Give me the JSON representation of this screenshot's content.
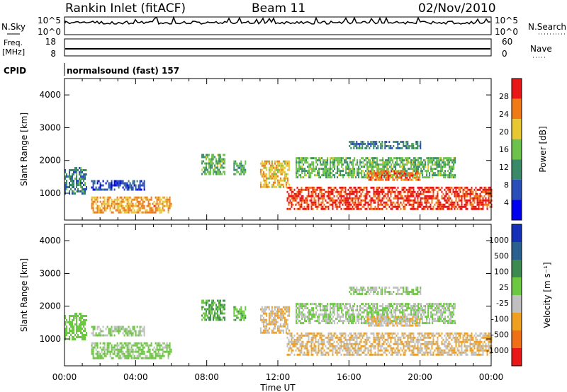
{
  "header": {
    "station": "Rankin Inlet (fitACF)",
    "beam": "Beam 11",
    "date": "02/Nov/2010"
  },
  "status_panels": {
    "nsky_label": "N.Sky",
    "nsky_ticks": [
      "10^5",
      "10^0"
    ],
    "nsearch_label": "N.Search",
    "nsearch_ticks": [
      "10^5",
      "10^0"
    ],
    "freq_label_line1": "Freq.",
    "freq_label_line2": "[MHz]",
    "freq_ticks": [
      "18",
      "8"
    ],
    "nave_label": "Nave",
    "nave_ticks": [
      "60",
      "0"
    ],
    "cpid_label": "CPID",
    "cpid_value": "normalsound (fast) 157"
  },
  "chart_data": [
    {
      "type": "heatmap",
      "title": "",
      "ylabel": "Slant Range [km]",
      "xlabel": "",
      "ylim": [
        180,
        4500
      ],
      "y_ticks": [
        "1000",
        "2000",
        "3000",
        "4000"
      ],
      "colorbar_label": "Power [dB]",
      "colorbar_ticks": [
        "28",
        "24",
        "20",
        "16",
        "12",
        "8",
        "4"
      ],
      "colorbar_colors": [
        "#0000ee",
        "#2a4fb8",
        "#3a8a6a",
        "#6cc24a",
        "#e8c832",
        "#f07a18",
        "#e81818"
      ],
      "colorbar_range": [
        0,
        30
      ],
      "regions": [
        {
          "t": [
            0.0,
            1.2
          ],
          "r": [
            1000,
            1800
          ],
          "v": 10
        },
        {
          "t": [
            1.5,
            6.0
          ],
          "r": [
            400,
            900
          ],
          "v": 22
        },
        {
          "t": [
            1.5,
            4.5
          ],
          "r": [
            1100,
            1400
          ],
          "v": 6
        },
        {
          "t": [
            7.7,
            9.0
          ],
          "r": [
            1600,
            2200
          ],
          "v": 14
        },
        {
          "t": [
            9.5,
            10.2
          ],
          "r": [
            1600,
            2000
          ],
          "v": 12
        },
        {
          "t": [
            11.0,
            12.6
          ],
          "r": [
            1200,
            2000
          ],
          "v": 20
        },
        {
          "t": [
            12.5,
            24.0
          ],
          "r": [
            500,
            1200
          ],
          "v": 27
        },
        {
          "t": [
            13.0,
            22.0
          ],
          "r": [
            1500,
            2100
          ],
          "v": 14
        },
        {
          "t": [
            17.0,
            20.0
          ],
          "r": [
            1400,
            1700
          ],
          "v": 24
        },
        {
          "t": [
            16.0,
            20.0
          ],
          "r": [
            2400,
            2600
          ],
          "v": 10
        }
      ]
    },
    {
      "type": "heatmap",
      "title": "",
      "ylabel": "Slant Range [km]",
      "xlabel": "Time UT",
      "ylim": [
        180,
        4500
      ],
      "x_ticks": [
        "00:00",
        "04:00",
        "08:00",
        "12:00",
        "16:00",
        "20:00",
        "00:00"
      ],
      "y_ticks": [
        "1000",
        "2000",
        "3000",
        "4000"
      ],
      "colorbar_label": "Velocity [m s⁻¹]",
      "colorbar_ticks": [
        "1000",
        "500",
        "100",
        "25",
        "-25",
        "-100",
        "-500",
        "-1000"
      ],
      "colorbar_colors": [
        "#1530b8",
        "#2a6090",
        "#3c8a50",
        "#6cc840",
        "#c0c0c0",
        "#f0a020",
        "#f07018",
        "#e81818"
      ],
      "colorbar_range": [
        -1250,
        1250
      ],
      "regions": [
        {
          "t": [
            0.0,
            1.2
          ],
          "r": [
            1000,
            1800
          ],
          "v": 150
        },
        {
          "t": [
            1.5,
            6.0
          ],
          "r": [
            400,
            900
          ],
          "v": 100
        },
        {
          "t": [
            1.5,
            4.5
          ],
          "r": [
            1100,
            1400
          ],
          "v": 0
        },
        {
          "t": [
            7.7,
            9.0
          ],
          "r": [
            1600,
            2200
          ],
          "v": 300
        },
        {
          "t": [
            9.5,
            10.2
          ],
          "r": [
            1600,
            2000
          ],
          "v": 200
        },
        {
          "t": [
            11.0,
            12.6
          ],
          "r": [
            1200,
            2000
          ],
          "v": -300
        },
        {
          "t": [
            12.5,
            24.0
          ],
          "r": [
            500,
            1200
          ],
          "v": -300
        },
        {
          "t": [
            13.0,
            22.0
          ],
          "r": [
            1500,
            2100
          ],
          "v": 0
        },
        {
          "t": [
            17.0,
            20.0
          ],
          "r": [
            1400,
            1700
          ],
          "v": -300
        },
        {
          "t": [
            16.0,
            20.0
          ],
          "r": [
            2400,
            2600
          ],
          "v": 0
        }
      ]
    }
  ]
}
